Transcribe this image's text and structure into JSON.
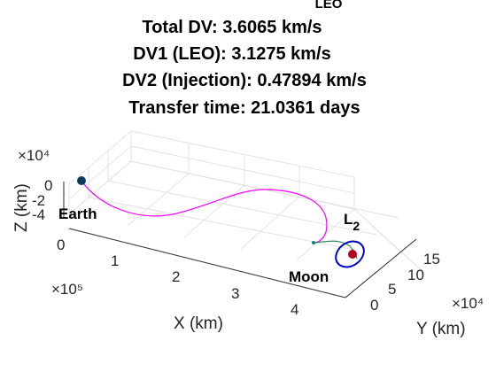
{
  "chart_data": {
    "type": "line",
    "title_lines": [
      "LEO",
      "Total DV: 3.6065 km/s",
      "DV1 (LEO): 3.1275 km/s",
      "DV2 (Injection): 0.47894 km/s",
      "Transfer time: 21.0361 days"
    ],
    "xlabel": "X (km)",
    "ylabel": "Y (km)",
    "zlabel": "Z (km)",
    "x_exponent": "×10⁵",
    "y_exponent": "×10⁴",
    "z_exponent": "×10⁴",
    "x_ticks": [
      "0",
      "1",
      "2",
      "3",
      "4"
    ],
    "y_ticks": [
      "0",
      "5",
      "10",
      "15"
    ],
    "z_ticks": [
      "-4",
      "-2",
      "0"
    ],
    "grid": true,
    "annotations": [
      {
        "text": "Earth"
      },
      {
        "text": "Moon"
      },
      {
        "text": "L",
        "subscript": "2"
      }
    ],
    "series_colors": {
      "transfer": "#ff00ff",
      "manifold": "#2e8b57",
      "halo_orbit": "#0000cc",
      "earth_marker": "#0b3c5d",
      "moon_marker": "#b3001b",
      "injection_marker": "#00897b"
    }
  }
}
